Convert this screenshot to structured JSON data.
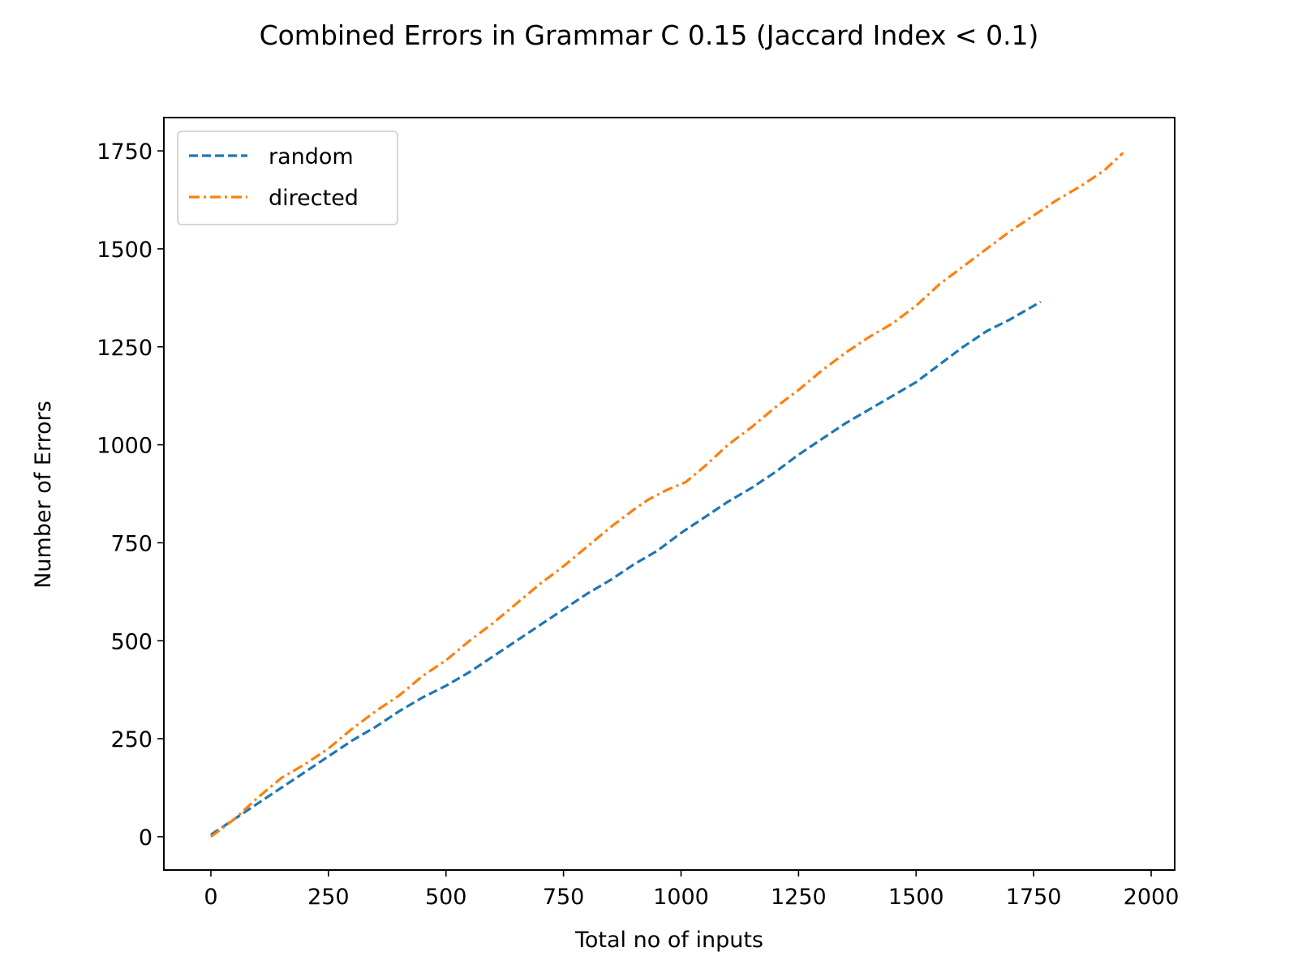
{
  "chart_data": {
    "type": "line",
    "title": "Combined Errors in Grammar C 0.15 (Jaccard Index < 0.1)",
    "xlabel": "Total no of inputs",
    "ylabel": "Number of Errors",
    "xlim": [
      -100,
      2050
    ],
    "ylim": [
      -85,
      1835
    ],
    "xticks": [
      0,
      250,
      500,
      750,
      1000,
      1250,
      1500,
      1750,
      2000
    ],
    "yticks": [
      0,
      250,
      500,
      750,
      1000,
      1250,
      1500,
      1750
    ],
    "grid": false,
    "legend_position": "upper-left",
    "series": [
      {
        "name": "random",
        "color": "#1f77b4",
        "style": "dashed",
        "x": [
          0,
          50,
          100,
          150,
          200,
          250,
          300,
          350,
          400,
          450,
          500,
          550,
          600,
          650,
          700,
          750,
          800,
          850,
          900,
          950,
          1000,
          1050,
          1100,
          1150,
          1200,
          1250,
          1300,
          1350,
          1400,
          1450,
          1500,
          1550,
          1600,
          1650,
          1700,
          1765
        ],
        "y": [
          5,
          45,
          85,
          125,
          165,
          205,
          245,
          280,
          320,
          355,
          385,
          420,
          460,
          500,
          540,
          580,
          620,
          655,
          695,
          730,
          775,
          815,
          855,
          890,
          930,
          975,
          1015,
          1055,
          1090,
          1125,
          1160,
          1205,
          1250,
          1290,
          1320,
          1365
        ]
      },
      {
        "name": "directed",
        "color": "#ff7f0e",
        "style": "dashdot",
        "x": [
          0,
          50,
          100,
          150,
          200,
          250,
          300,
          350,
          400,
          450,
          500,
          550,
          600,
          650,
          700,
          750,
          800,
          850,
          900,
          930,
          970,
          1010,
          1050,
          1100,
          1150,
          1200,
          1250,
          1300,
          1350,
          1400,
          1450,
          1500,
          1550,
          1600,
          1650,
          1700,
          1750,
          1800,
          1850,
          1900,
          1940
        ],
        "y": [
          0,
          45,
          100,
          150,
          185,
          225,
          275,
          320,
          360,
          410,
          450,
          500,
          545,
          595,
          645,
          690,
          740,
          790,
          835,
          860,
          885,
          905,
          945,
          1000,
          1045,
          1095,
          1140,
          1190,
          1235,
          1275,
          1310,
          1355,
          1410,
          1455,
          1500,
          1545,
          1585,
          1625,
          1660,
          1700,
          1745
        ]
      }
    ]
  }
}
